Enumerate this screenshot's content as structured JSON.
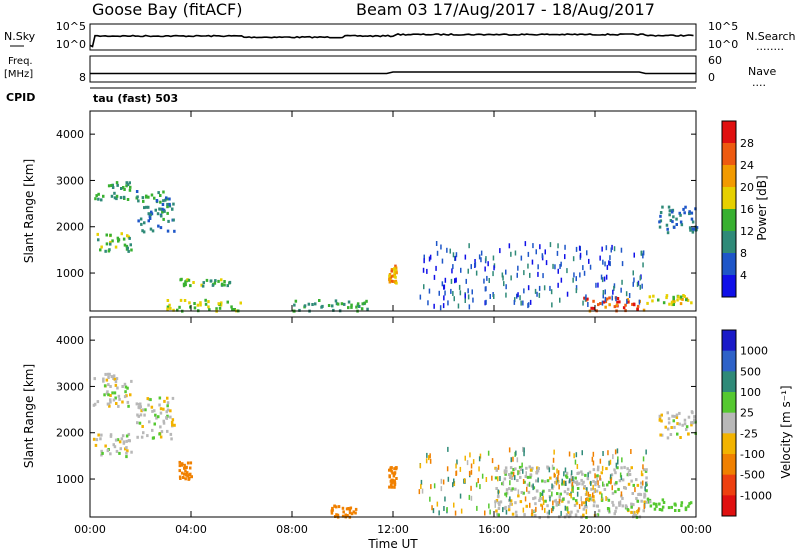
{
  "header": {
    "station": "Goose Bay (fitACF)",
    "beam_dates": "Beam 03 17/Aug/2017 - 18/Aug/2017"
  },
  "strip_nsky": {
    "left_label": "N.Sky",
    "tick_top": "10^5",
    "tick_bottom": "10^0",
    "right_tick_top": "10^5",
    "right_tick_bottom": "10^0",
    "right_label": "N.Search",
    "right_dots": "........"
  },
  "strip_freq": {
    "left_label_1": "Freq.",
    "left_label_2": "[MHz]",
    "left_tick": "8",
    "right_tick_top": "60",
    "right_tick_bottom": "0",
    "right_label": "Nave",
    "right_dots": "...."
  },
  "cpid": {
    "label": "CPID",
    "value": "tau (fast) 503"
  },
  "axes": {
    "ylabel": "Slant Range [km]",
    "xlabel": "Time UT",
    "yticks": [
      "1000",
      "2000",
      "3000",
      "4000"
    ],
    "xticks": [
      "00:00",
      "04:00",
      "08:00",
      "12:00",
      "16:00",
      "20:00",
      "00:00"
    ]
  },
  "power_scale": {
    "label": "Power [dB]",
    "ticks": [
      "4",
      "8",
      "12",
      "16",
      "20",
      "24",
      "28"
    ],
    "colors": [
      "#1010e8",
      "#1e56c8",
      "#2f8a78",
      "#38b030",
      "#e6d000",
      "#f29a00",
      "#ee5a10",
      "#e01010"
    ]
  },
  "velocity_scale": {
    "label": "Velocity [m s⁻¹]",
    "ticks": [
      "1000",
      "500",
      "100",
      "25",
      "-25",
      "-100",
      "-500",
      "-1000"
    ],
    "colors": [
      "#1a1ac8",
      "#2e62c8",
      "#2f8a78",
      "#55c830",
      "#b8b8b8",
      "#f2b300",
      "#f08000",
      "#ee4010",
      "#e01010"
    ]
  },
  "chart_data": [
    {
      "type": "line",
      "title": "N.Sky / N.Search",
      "x_unit": "hours UT",
      "x": [
        0,
        0.2,
        12,
        12.01,
        21.9,
        22,
        24
      ],
      "nsky_level": "high",
      "steps_at_hours": [
        0.2,
        12.0,
        22.0
      ]
    },
    {
      "type": "line",
      "title": "Freq [MHz] / Nave",
      "x": [
        0,
        12,
        21.9,
        22,
        24
      ],
      "freq_MHz": [
        10.2,
        10.2,
        10.2,
        10.2,
        10.2
      ],
      "nave_step_hours": [
        12.0,
        22.0
      ]
    },
    {
      "type": "heatmap",
      "title": "Power [dB]",
      "xlabel": "Time UT",
      "ylabel": "Slant Range [km]",
      "xlim": [
        0,
        24
      ],
      "ylim": [
        180,
        4500
      ],
      "zlim": [
        0,
        32
      ],
      "features": [
        {
          "t0": 0.1,
          "t1": 1.6,
          "r0": 1500,
          "r1": 1900,
          "db": 14
        },
        {
          "t0": 0.1,
          "t1": 1.6,
          "r0": 2600,
          "r1": 3000,
          "db": 12
        },
        {
          "t0": 1.8,
          "t1": 3.3,
          "r0": 1900,
          "r1": 2800,
          "db": 10
        },
        {
          "t0": 3.5,
          "t1": 5.5,
          "r0": 750,
          "r1": 900,
          "db": 14
        },
        {
          "t0": 3.0,
          "t1": 6.0,
          "r0": 200,
          "r1": 450,
          "db": 16
        },
        {
          "t0": 8.0,
          "t1": 11.0,
          "r0": 200,
          "r1": 450,
          "db": 12
        },
        {
          "t0": 11.8,
          "t1": 12.1,
          "r0": 800,
          "r1": 1200,
          "db": 22
        },
        {
          "t0": 19.5,
          "t1": 22.0,
          "r0": 200,
          "r1": 500,
          "db": 26
        },
        {
          "t0": 22.0,
          "t1": 23.8,
          "r0": 350,
          "r1": 550,
          "db": 18
        },
        {
          "t0": 22.5,
          "t1": 24.0,
          "r0": 1900,
          "r1": 2500,
          "db": 8
        }
      ]
    },
    {
      "type": "heatmap",
      "title": "Velocity [m s⁻¹]",
      "xlabel": "Time UT",
      "ylabel": "Slant Range [km]",
      "xlim": [
        0,
        24
      ],
      "ylim": [
        180,
        4500
      ],
      "zlim": [
        -1000,
        1000
      ],
      "features": [
        {
          "t0": 0.1,
          "t1": 1.6,
          "r0": 1500,
          "r1": 2000,
          "v": 0
        },
        {
          "t0": 0.1,
          "t1": 1.6,
          "r0": 2600,
          "r1": 3300,
          "v": 0
        },
        {
          "t0": 1.8,
          "t1": 3.3,
          "r0": 1900,
          "r1": 2800,
          "v": 0
        },
        {
          "t0": 3.5,
          "t1": 4.0,
          "r0": 1000,
          "r1": 1400,
          "v": -150
        },
        {
          "t0": 9.5,
          "t1": 10.5,
          "r0": 200,
          "r1": 450,
          "v": -150
        },
        {
          "t0": 11.8,
          "t1": 12.1,
          "r0": 800,
          "r1": 1300,
          "v": -200
        },
        {
          "t0": 16.0,
          "t1": 22.0,
          "r0": 200,
          "r1": 1300,
          "v": 0
        },
        {
          "t0": 22.0,
          "t1": 23.8,
          "r0": 350,
          "r1": 600,
          "v": 60
        },
        {
          "t0": 22.5,
          "t1": 24.0,
          "r0": 1900,
          "r1": 2500,
          "v": 0
        }
      ]
    }
  ]
}
